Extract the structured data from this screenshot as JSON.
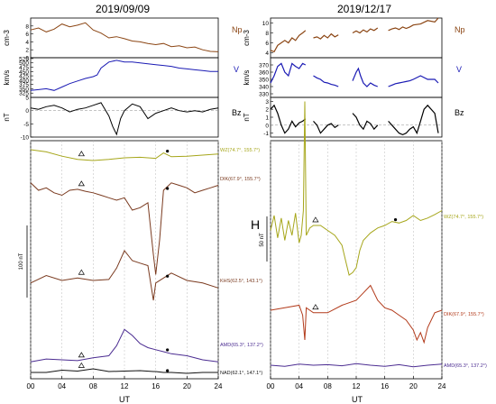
{
  "chart_data": [
    {
      "type": "line",
      "title": "2019/09/09",
      "xlabel": "UT",
      "xlim": [
        0,
        24
      ],
      "x_ticks": [
        "00",
        "04",
        "08",
        "12",
        "16",
        "20",
        "24"
      ],
      "solar_wind": [
        {
          "name": "Np",
          "unit": "cm-3",
          "ylim": [
            0,
            10
          ],
          "ticks": [
            "0",
            "2",
            "4",
            "6",
            "8"
          ],
          "color": "#8b4513",
          "x": [
            0,
            1,
            2,
            3,
            4,
            5,
            6,
            7,
            8,
            9,
            10,
            11,
            12,
            13,
            14,
            15,
            16,
            17,
            18,
            19,
            20,
            21,
            22,
            23,
            24
          ],
          "y": [
            7,
            7.5,
            6.5,
            7.2,
            8.5,
            7.8,
            8.2,
            8.8,
            7,
            6.2,
            5,
            5.3,
            4.8,
            4.2,
            4,
            3.6,
            3.3,
            3.6,
            2.8,
            3,
            2.5,
            2.7,
            2,
            1.6,
            1.5
          ]
        },
        {
          "name": "V",
          "unit": "km/s",
          "ylim": [
            300,
            530
          ],
          "ticks": [
            "325",
            "350",
            "375",
            "400",
            "425",
            "450",
            "475",
            "500",
            "525"
          ],
          "color": "#1a1ab4",
          "x": [
            0,
            1,
            2,
            3,
            4,
            5,
            6,
            7,
            8,
            8.5,
            9,
            10,
            11,
            12,
            13,
            14,
            15,
            16,
            17,
            18,
            19,
            20,
            21,
            22,
            23,
            24
          ],
          "y": [
            340,
            345,
            350,
            340,
            360,
            380,
            395,
            410,
            420,
            430,
            470,
            505,
            515,
            505,
            505,
            500,
            495,
            490,
            485,
            480,
            470,
            465,
            460,
            455,
            450,
            450
          ]
        },
        {
          "name": "Bz",
          "unit": "nT",
          "ylim": [
            -10,
            5
          ],
          "ticks": [
            "-10",
            "-5",
            "0",
            "5"
          ],
          "color": "#000000",
          "x": [
            0,
            1,
            2,
            3,
            4,
            5,
            6,
            7,
            8,
            9,
            10,
            10.5,
            11,
            11.5,
            12,
            13,
            14,
            15,
            16,
            17,
            18,
            19,
            20,
            21,
            22,
            23,
            24
          ],
          "y": [
            1,
            0.5,
            1.5,
            2,
            1,
            -0.5,
            0.5,
            1,
            2,
            3,
            -2,
            -6,
            -9,
            -3,
            0,
            2.5,
            1.5,
            -3,
            -1,
            0,
            1,
            0,
            -0.5,
            0,
            -0.5,
            0.5,
            1
          ]
        }
      ],
      "magnetometers": [
        {
          "name": "WZ(74.7°, 155.7°)",
          "color": "#a6a61a",
          "markers": [
            6.5,
            17.5
          ],
          "x": [
            0,
            2,
            4,
            6,
            8,
            10,
            12,
            14,
            16,
            17,
            18,
            20,
            22,
            24
          ],
          "y": [
            10,
            6,
            -2,
            -8,
            -10,
            -8,
            -5,
            -4,
            -6,
            4,
            -3,
            -2,
            0,
            2
          ]
        },
        {
          "name": "DIK(67.9°, 155.7°)",
          "color": "#7a3a1f",
          "markers": [
            6.5,
            17.5
          ],
          "x": [
            0,
            1,
            2,
            3,
            4,
            5,
            6,
            7,
            8,
            9,
            10,
            11,
            12,
            13,
            14,
            15,
            15.7,
            16,
            16.5,
            17,
            18,
            19,
            20,
            21,
            22,
            23,
            24
          ],
          "y": [
            -5,
            -20,
            -15,
            -25,
            -30,
            -20,
            -18,
            -22,
            -25,
            -30,
            -35,
            -40,
            -35,
            -60,
            -55,
            -45,
            -150,
            -190,
            -120,
            -20,
            -5,
            -10,
            -15,
            -25,
            -20,
            -15,
            -10
          ]
        },
        {
          "name": "KHS(62.5°, 143.1°)",
          "color": "#7a3a1f",
          "markers": [
            6.5,
            17.5
          ],
          "x": [
            0,
            2,
            4,
            6,
            8,
            10,
            11,
            12,
            13,
            14,
            15,
            15.7,
            16,
            17,
            18,
            20,
            22,
            24
          ],
          "y": [
            -25,
            -10,
            -20,
            -15,
            -20,
            -18,
            5,
            40,
            20,
            15,
            10,
            -60,
            -25,
            -15,
            -5,
            -20,
            -25,
            -35
          ]
        },
        {
          "name": "AMD(65.3°, 137.2°)",
          "color": "#4b2c91",
          "markers": [
            6.5,
            17.5
          ],
          "x": [
            0,
            2,
            4,
            6,
            8,
            10,
            11,
            12,
            13,
            14,
            15,
            16,
            17,
            18,
            20,
            22,
            24
          ],
          "y": [
            -25,
            -18,
            -20,
            -22,
            -15,
            -10,
            15,
            55,
            40,
            20,
            10,
            5,
            0,
            -5,
            -10,
            -20,
            -25
          ]
        },
        {
          "name": "NAD(62.1°, 147.1°)",
          "color": "#111111",
          "markers": [
            6.5,
            17.5
          ],
          "x": [
            0,
            2,
            4,
            6,
            8,
            10,
            12,
            14,
            15.7,
            16,
            17,
            18,
            20,
            22,
            24
          ],
          "y": [
            0,
            0,
            5,
            3,
            8,
            2,
            3,
            4,
            2,
            2,
            0,
            0,
            -2,
            0,
            0
          ]
        }
      ],
      "scale_label": "100 nT",
      "scale_value": 100
    },
    {
      "type": "line",
      "title": "2019/12/17",
      "xlabel": "UT",
      "xlim": [
        0,
        24
      ],
      "x_ticks": [
        "00",
        "04",
        "08",
        "12",
        "16",
        "20",
        "24"
      ],
      "component": "H",
      "solar_wind": [
        {
          "name": "Np",
          "unit": "cm-3",
          "ylim": [
            3,
            11
          ],
          "ticks": [
            "4",
            "6",
            "8",
            "10"
          ],
          "color": "#8b4513",
          "segments": [
            {
              "x": [
                0,
                0.5,
                1,
                1.5,
                2,
                2.5,
                3,
                3.5,
                4,
                4.5,
                4.9
              ],
              "y": [
                4.5,
                4.2,
                5.5,
                6,
                6.5,
                6,
                7,
                6.5,
                7.5,
                8,
                8.5
              ]
            },
            {
              "x": [
                6,
                6.5,
                7,
                7.5,
                8,
                8.5,
                9,
                9.5
              ],
              "y": [
                7,
                7.2,
                6.8,
                7.5,
                7,
                7.8,
                7.2,
                7.6
              ]
            },
            {
              "x": [
                11.5,
                12,
                12.5,
                13,
                13.5,
                14,
                14.5,
                15
              ],
              "y": [
                8,
                8.4,
                8,
                8.6,
                8.2,
                8.8,
                8.5,
                9
              ]
            },
            {
              "x": [
                16.5,
                17,
                17.5,
                18,
                18.5,
                19,
                19.5,
                20,
                21,
                22,
                23,
                23.5
              ],
              "y": [
                8.5,
                8.8,
                9,
                8.7,
                9.2,
                8.9,
                9.2,
                9.6,
                9.8,
                10.5,
                10.2,
                11
              ]
            }
          ]
        },
        {
          "name": "V",
          "unit": "km/s",
          "ylim": [
            325,
            380
          ],
          "ticks": [
            "330",
            "340",
            "350",
            "360",
            "370"
          ],
          "color": "#1a1ab4",
          "segments": [
            {
              "x": [
                0,
                0.5,
                1,
                1.5,
                2,
                2.5,
                3,
                3.5,
                4,
                4.5,
                4.9
              ],
              "y": [
                345,
                355,
                368,
                372,
                360,
                355,
                372,
                368,
                365,
                372,
                370
              ]
            },
            {
              "x": [
                6,
                6.5,
                7,
                7.5,
                8,
                8.5,
                9,
                9.5
              ],
              "y": [
                355,
                352,
                350,
                346,
                345,
                343,
                342,
                340
              ]
            },
            {
              "x": [
                11.5,
                12,
                12.3,
                12.6,
                13,
                13.5,
                14,
                14.5,
                15
              ],
              "y": [
                348,
                360,
                365,
                355,
                345,
                340,
                345,
                342,
                340
              ]
            },
            {
              "x": [
                16.5,
                17,
                17.5,
                18,
                18.5,
                19,
                19.5,
                20,
                21,
                22,
                23,
                23.5
              ],
              "y": [
                340,
                342,
                344,
                345,
                346,
                347,
                348,
                350,
                355,
                350,
                350,
                345
              ]
            }
          ]
        },
        {
          "name": "Bz",
          "unit": "nT",
          "ylim": [
            -1.5,
            3.5
          ],
          "ticks": [
            "-1",
            "0",
            "1",
            "2",
            "3"
          ],
          "color": "#000000",
          "segments": [
            {
              "x": [
                0,
                0.5,
                1,
                1.5,
                2,
                2.5,
                3,
                3.5,
                4,
                4.5,
                4.9
              ],
              "y": [
                2,
                2.5,
                1.5,
                0,
                -1,
                -0.5,
                0.5,
                -0.2,
                0.3,
                0.5,
                0.8
              ]
            },
            {
              "x": [
                6,
                6.5,
                7,
                7.5,
                8,
                8.5,
                9,
                9.5
              ],
              "y": [
                0.5,
                0,
                -1,
                -0.5,
                0,
                0.2,
                -0.3,
                0
              ]
            },
            {
              "x": [
                11.5,
                12,
                12.5,
                13,
                13.5,
                14,
                14.5,
                15
              ],
              "y": [
                1.5,
                1,
                0,
                -0.5,
                0.5,
                0.2,
                -0.5,
                0
              ]
            },
            {
              "x": [
                16.5,
                17,
                17.5,
                18,
                18.5,
                19,
                19.5,
                20,
                20.5,
                21,
                21.5,
                22,
                23,
                23.5
              ],
              "y": [
                0.5,
                0,
                -0.5,
                -1,
                -1.2,
                -1,
                -0.5,
                -0.2,
                -1,
                0.5,
                2,
                2.5,
                1.5,
                -1
              ]
            }
          ]
        }
      ],
      "magnetometers": [
        {
          "name": "WZ(74.7°, 155.7°)",
          "color": "#a6a61a",
          "markers": [
            6.3,
            17.5
          ],
          "x": [
            0,
            0.5,
            1,
            1.5,
            2,
            2.5,
            3,
            3.5,
            4,
            4.3,
            4.6,
            4.8,
            5,
            5.5,
            6,
            7,
            8,
            9,
            10,
            10.5,
            11,
            11.5,
            12,
            12.5,
            13,
            14,
            15,
            16,
            17,
            18,
            19,
            20,
            21,
            22,
            23,
            24
          ],
          "y": [
            -10,
            20,
            -25,
            15,
            -30,
            10,
            -20,
            25,
            -35,
            -20,
            30,
            250,
            -20,
            -5,
            0,
            0,
            -10,
            -20,
            -40,
            -70,
            -100,
            -95,
            -85,
            -50,
            -30,
            -15,
            -5,
            0,
            8,
            5,
            10,
            20,
            10,
            15,
            22,
            30
          ]
        },
        {
          "name": "DIK(67.9°, 155.7°)",
          "color": "#b23a1a",
          "markers": [
            6.3
          ],
          "x": [
            0,
            2,
            4,
            4.5,
            4.8,
            5,
            5.5,
            6,
            8,
            10,
            12,
            13,
            14,
            15,
            16,
            17,
            18,
            19,
            20,
            20.5,
            21,
            21.5,
            22,
            23,
            24
          ],
          "y": [
            20,
            25,
            30,
            10,
            -40,
            25,
            20,
            15,
            15,
            30,
            40,
            55,
            70,
            40,
            25,
            20,
            10,
            0,
            -20,
            -40,
            -25,
            -45,
            -15,
            15,
            20
          ]
        },
        {
          "name": "AMD(65.3°, 137.2°)",
          "color": "#4b2c91",
          "markers": [],
          "x": [
            0,
            2,
            4,
            6,
            8,
            10,
            12,
            14,
            16,
            18,
            20,
            22,
            24
          ],
          "y": [
            0,
            -2,
            2,
            0,
            1,
            -1,
            3,
            0,
            -2,
            1,
            -3,
            0,
            2
          ]
        }
      ],
      "scale_label": "50 nT",
      "scale_value": 50
    }
  ]
}
